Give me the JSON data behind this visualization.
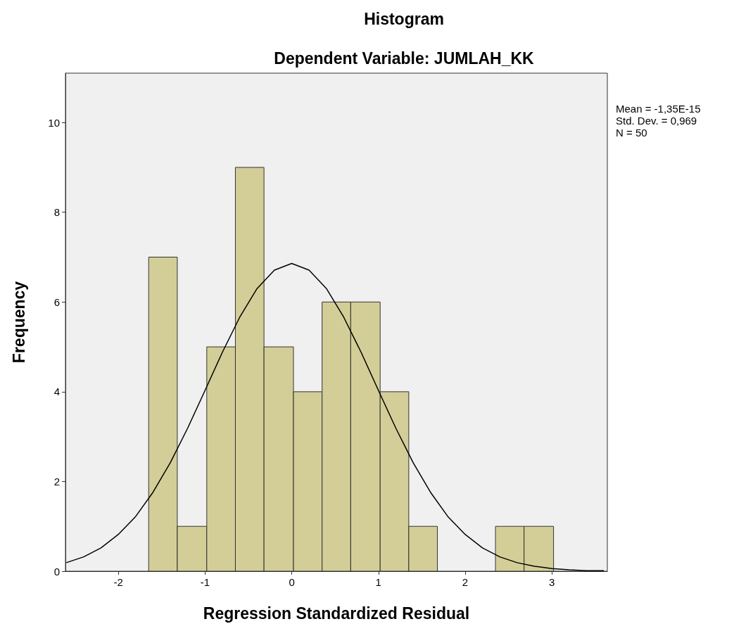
{
  "chart_data": {
    "type": "histogram",
    "title": "Histogram",
    "subtitle": "Dependent Variable: JUMLAH_KK",
    "xlabel": "Regression Standardized Residual",
    "ylabel": "Frequency",
    "bins": [
      -1.65,
      -1.32,
      -0.98,
      -0.65,
      -0.32,
      0.02,
      0.35,
      0.68,
      1.02,
      1.35,
      1.68,
      2.35,
      2.68,
      3.02
    ],
    "series": [
      {
        "color": "#d3ce97",
        "values": [
          7,
          1,
          5,
          9,
          5,
          4,
          6,
          6,
          4,
          1,
          0,
          1,
          1
        ]
      },
      {
        "type": "line",
        "color": "#000000",
        "x": [
          -2.6,
          -2.4,
          -2.2,
          -2.0,
          -1.8,
          -1.6,
          -1.4,
          -1.2,
          -1.0,
          -0.8,
          -0.6,
          -0.4,
          -0.2,
          0,
          0.2,
          0.4,
          0.6,
          0.8,
          1.0,
          1.2,
          1.4,
          1.6,
          1.8,
          2.0,
          2.2,
          2.4,
          2.6,
          2.8,
          3.0,
          3.2,
          3.4,
          3.6
        ],
        "values": [
          0.19,
          0.32,
          0.52,
          0.82,
          1.22,
          1.76,
          2.42,
          3.19,
          4.03,
          4.88,
          5.66,
          6.3,
          6.71,
          6.86,
          6.71,
          6.3,
          5.66,
          4.88,
          4.03,
          3.19,
          2.42,
          1.76,
          1.22,
          0.82,
          0.52,
          0.32,
          0.19,
          0.11,
          0.06,
          0.03,
          0.01,
          0.01
        ]
      }
    ],
    "xlim": [
      -2.61,
      3.64
    ],
    "xticks": [
      -2,
      -1,
      0,
      1,
      2,
      3
    ],
    "ylim": [
      0,
      11.1
    ],
    "yticks": [
      0,
      2,
      4,
      6,
      8,
      10
    ],
    "grid": false,
    "marker": "none",
    "annotations": [
      "Mean = -1,35E-15",
      "Std. Dev. = 0,969",
      "N = 50"
    ]
  }
}
